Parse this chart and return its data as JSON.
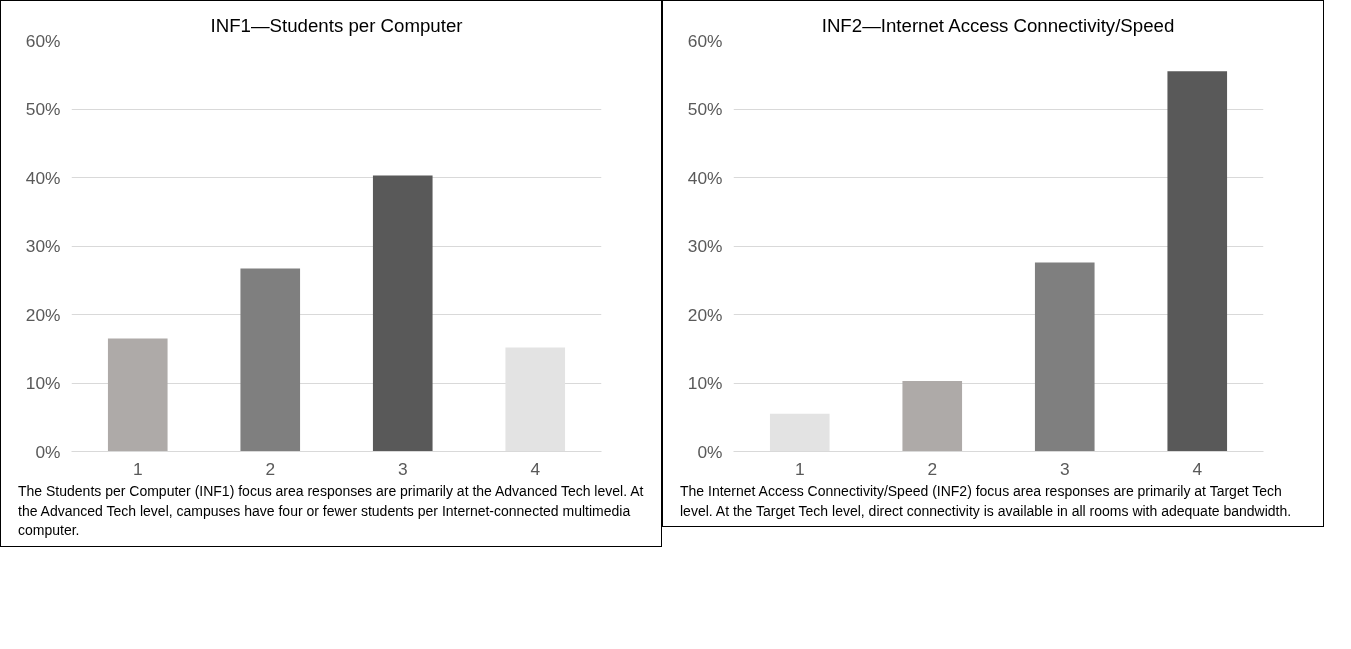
{
  "chart_data": [
    {
      "type": "bar",
      "title": "INF1—Students per Computer",
      "categories": [
        "1",
        "2",
        "3",
        "4"
      ],
      "values": [
        16.5,
        26.7,
        40.3,
        15.2
      ],
      "colors": [
        "#aeaaa8",
        "#7f7f7f",
        "#595959",
        "#e3e3e3"
      ],
      "ylim": [
        0,
        60
      ],
      "yticks": [
        {
          "value": 0,
          "label": "0%"
        },
        {
          "value": 10,
          "label": "10%"
        },
        {
          "value": 20,
          "label": "20%"
        },
        {
          "value": 30,
          "label": "30%"
        },
        {
          "value": 40,
          "label": "40%"
        },
        {
          "value": 50,
          "label": "50%"
        },
        {
          "value": 60,
          "label": "60%"
        }
      ],
      "grid": "y",
      "annotations": [
        "The Students per Computer (INF1) focus area responses are primarily at the Advanced Tech level. At the Advanced Tech level, campuses have four or fewer students per Internet-connected multimedia computer."
      ]
    },
    {
      "type": "bar",
      "title": "INF2—Internet Access Connectivity/Speed",
      "categories": [
        "1",
        "2",
        "3",
        "4"
      ],
      "values": [
        5.5,
        10.3,
        27.6,
        55.5
      ],
      "colors": [
        "#e3e3e3",
        "#aeaaa8",
        "#7f7f7f",
        "#595959"
      ],
      "ylim": [
        0,
        60
      ],
      "yticks": [
        {
          "value": 0,
          "label": "0%"
        },
        {
          "value": 10,
          "label": "10%"
        },
        {
          "value": 20,
          "label": "20%"
        },
        {
          "value": 30,
          "label": "30%"
        },
        {
          "value": 40,
          "label": "40%"
        },
        {
          "value": 50,
          "label": "50%"
        },
        {
          "value": 60,
          "label": "60%"
        }
      ],
      "grid": "y",
      "annotations": [
        "The Internet Access Connectivity/Speed (INF2) focus area responses are primarily at Target Tech level. At the Target Tech level, direct connectivity is available in all rooms with adequate bandwidth."
      ]
    }
  ]
}
